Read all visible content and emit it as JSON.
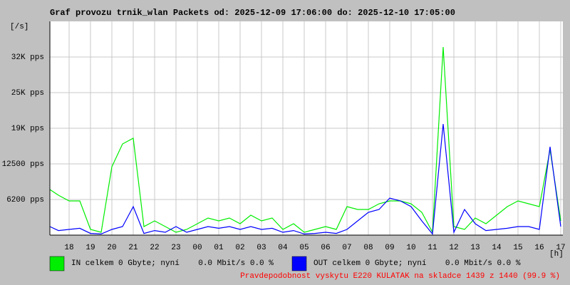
{
  "chart_data": {
    "type": "line",
    "title": "Graf provozu trnik_wlan Packets od: 2025-12-09 17:06:00 do: 2025-12-10 17:05:00",
    "y_label": "[/s]",
    "x_label": "[h]",
    "x": [
      17.1,
      17.5,
      18,
      18.5,
      19,
      19.5,
      20,
      20.5,
      21,
      21.5,
      22,
      22.5,
      23,
      23.5,
      24,
      24.5,
      25,
      25.5,
      26,
      26.5,
      27,
      27.5,
      28,
      28.5,
      29,
      29.5,
      30,
      30.5,
      31,
      31.5,
      32,
      32.5,
      33,
      33.5,
      34,
      34.5,
      35,
      35.5,
      36,
      36.5,
      37,
      37.5,
      38,
      38.5,
      39,
      39.5,
      40,
      40.5,
      41
    ],
    "xlim": [
      17.1,
      41.1
    ],
    "xticks": [
      18,
      19,
      20,
      21,
      22,
      23,
      {
        "value": 24,
        "label": "00"
      },
      {
        "value": 25,
        "label": "01"
      },
      {
        "value": 26,
        "label": "02"
      },
      {
        "value": 27,
        "label": "03"
      },
      {
        "value": 28,
        "label": "04"
      },
      {
        "value": 29,
        "label": "05"
      },
      {
        "value": 30,
        "label": "06"
      },
      {
        "value": 31,
        "label": "07"
      },
      {
        "value": 32,
        "label": "08"
      },
      {
        "value": 33,
        "label": "09"
      },
      {
        "value": 34,
        "label": "10"
      },
      {
        "value": 35,
        "label": "11"
      },
      {
        "value": 36,
        "label": "12"
      },
      {
        "value": 37,
        "label": "13"
      },
      {
        "value": 38,
        "label": "14"
      },
      {
        "value": 39,
        "label": "15"
      },
      {
        "value": 40,
        "label": "16"
      },
      {
        "value": 41,
        "label": "17"
      }
    ],
    "ylim": [
      0,
      37500
    ],
    "yticks": [
      {
        "value": 6250,
        "label": "6200 pps"
      },
      {
        "value": 12500,
        "label": "12500 pps"
      },
      {
        "value": 18750,
        "label": "19K pps"
      },
      {
        "value": 25000,
        "label": "25K pps"
      },
      {
        "value": 31250,
        "label": "32K pps"
      }
    ],
    "grid": true,
    "series": [
      {
        "name": "IN celkem 0 Gbyte; nyní    0.0 Mbit/s 0.0 %",
        "color": "#00ee00",
        "values": [
          8000,
          7000,
          6000,
          6000,
          1000,
          500,
          12000,
          16000,
          17000,
          1500,
          2500,
          1500,
          500,
          1000,
          2000,
          3000,
          2500,
          3000,
          2000,
          3500,
          2500,
          3000,
          1000,
          2000,
          500,
          1000,
          1500,
          1000,
          5000,
          4500,
          4500,
          5500,
          6000,
          6000,
          5500,
          4000,
          500,
          33000,
          1500,
          1000,
          3000,
          2000,
          3500,
          5000,
          6000,
          5500,
          5000,
          15000,
          2500
        ]
      },
      {
        "name": "OUT celkem 0 Gbyte; nyní    0.0 Mbit/s 0.0 %",
        "color": "#0000ff",
        "values": [
          1500,
          800,
          1000,
          1200,
          300,
          200,
          1000,
          1500,
          5000,
          300,
          800,
          500,
          1500,
          500,
          1000,
          1500,
          1200,
          1500,
          1000,
          1500,
          1000,
          1200,
          500,
          800,
          200,
          300,
          500,
          300,
          1000,
          2500,
          4000,
          4500,
          6500,
          6000,
          5000,
          2500,
          200,
          19500,
          500,
          4500,
          2000,
          800,
          1000,
          1200,
          1500,
          1500,
          1000,
          15500,
          1500
        ]
      }
    ],
    "note": "Pravdepodobnost vyskytu E220 KULATAK na skladce 1439 z 1440 (99.9 %)"
  }
}
